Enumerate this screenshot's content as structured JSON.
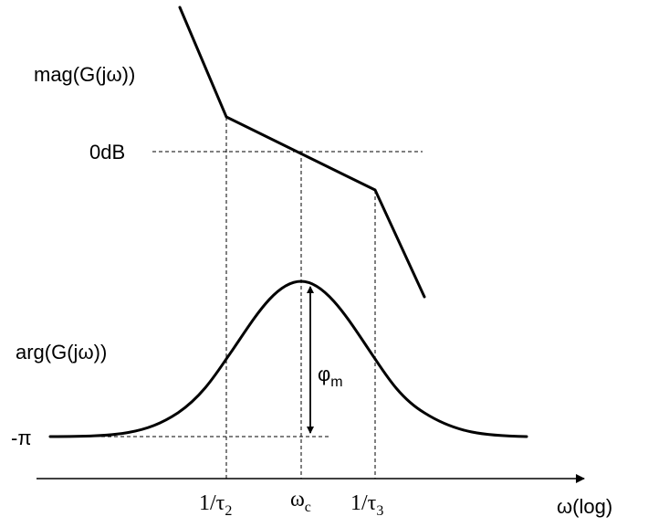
{
  "labels": {
    "magnitude": "mag(G(jω))",
    "zero_db": "0dB",
    "phase": "arg(G(jω))",
    "minus_pi": "-π",
    "phase_margin_symbol": "φ",
    "phase_margin_sub": "m",
    "x_axis": "ω(log)"
  },
  "ticks": {
    "break_low": {
      "prefix": "1/τ",
      "sub": "2"
    },
    "crossover": {
      "prefix": "ω",
      "sub": "c"
    },
    "break_high": {
      "prefix": "1/τ",
      "sub": "3"
    }
  },
  "colors": {
    "stroke": "#000000",
    "background": "#ffffff"
  }
}
